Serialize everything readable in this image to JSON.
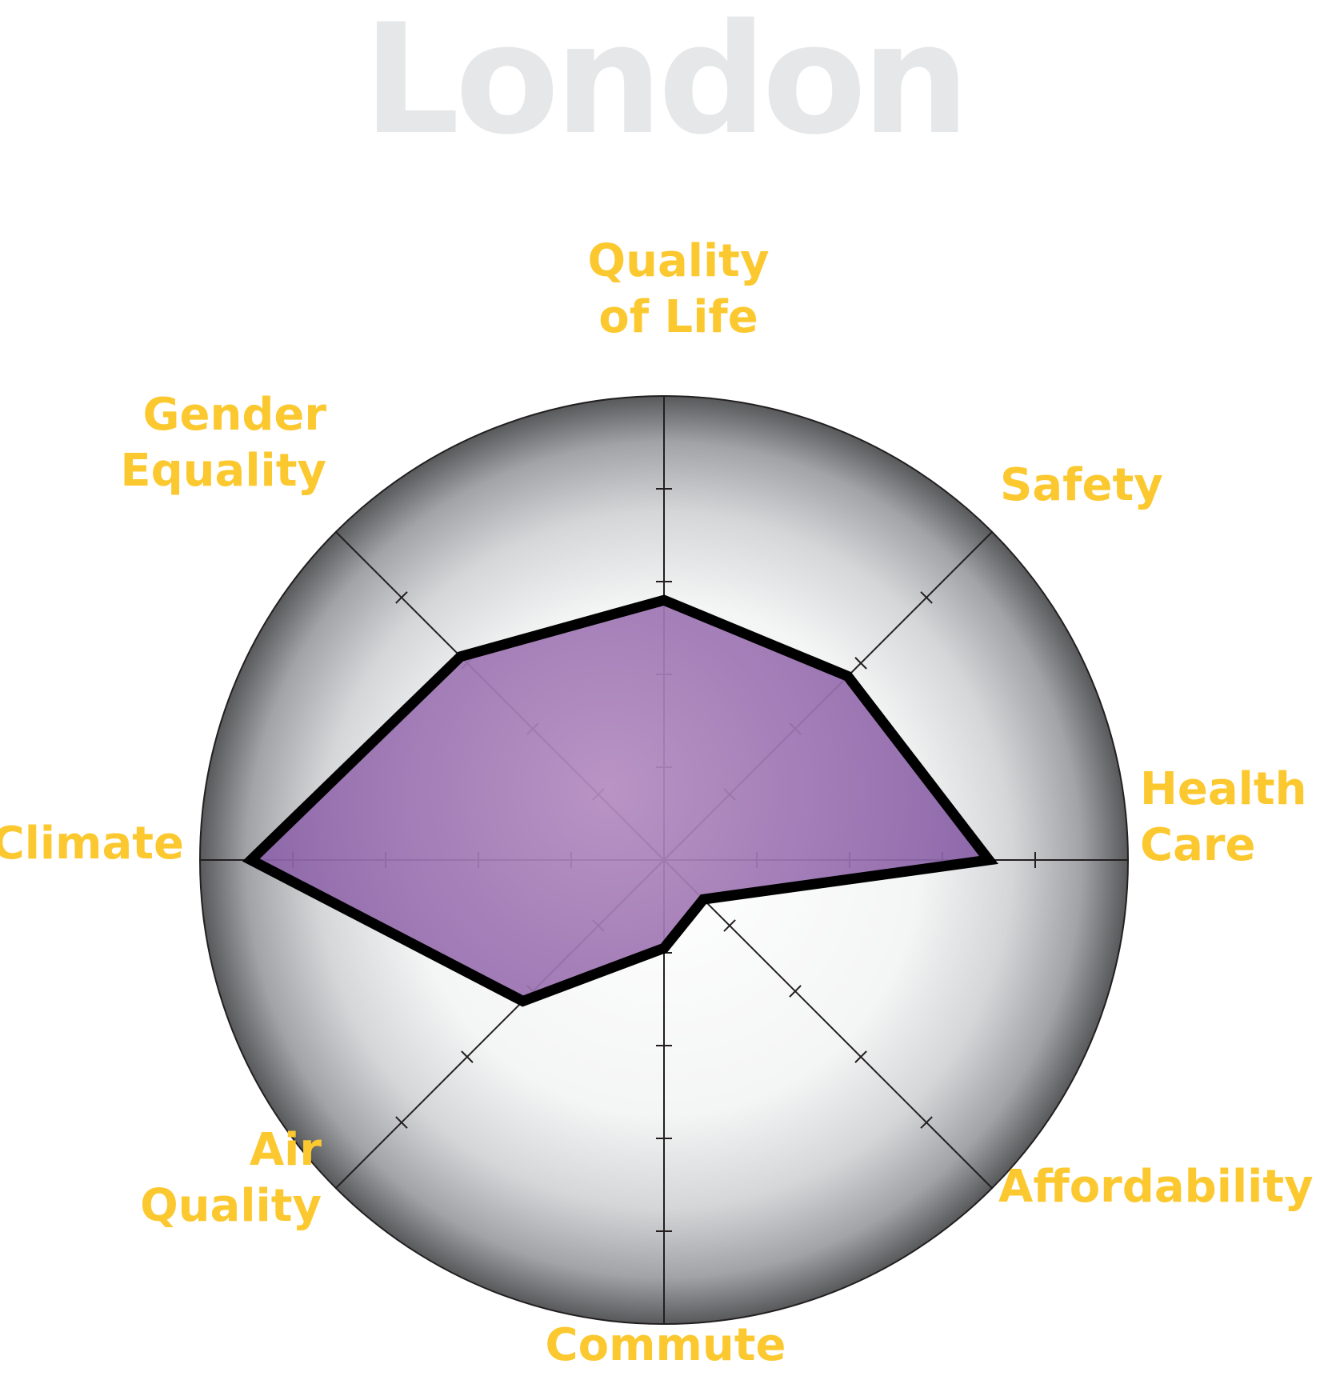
{
  "chart_data": {
    "type": "radar",
    "title": "London",
    "axes": [
      {
        "name": "Quality of Life",
        "lines": [
          "Quality",
          "of Life"
        ]
      },
      {
        "name": "Safety",
        "lines": [
          "Safety"
        ]
      },
      {
        "name": "Health Care",
        "lines": [
          "Health",
          "Care"
        ]
      },
      {
        "name": "Affordability",
        "lines": [
          "Affordability"
        ]
      },
      {
        "name": "Commute",
        "lines": [
          "Commute"
        ]
      },
      {
        "name": "Air Quality",
        "lines": [
          "Air",
          "Quality"
        ]
      },
      {
        "name": "Climate",
        "lines": [
          "Climate"
        ]
      },
      {
        "name": "Gender Equality",
        "lines": [
          "Gender",
          "Equality"
        ]
      }
    ],
    "range": [
      0,
      5
    ],
    "ticks": [
      1,
      2,
      3,
      4
    ],
    "series": [
      {
        "values": [
          2.8,
          2.8,
          3.5,
          0.6,
          0.95,
          2.15,
          4.45,
          3.1
        ]
      }
    ],
    "colors": {
      "title": "#e6e7e8",
      "label": "#fcc82f",
      "fill": "#7e56a0",
      "fill_center": "#b48cc0",
      "outline": "#000000"
    }
  }
}
